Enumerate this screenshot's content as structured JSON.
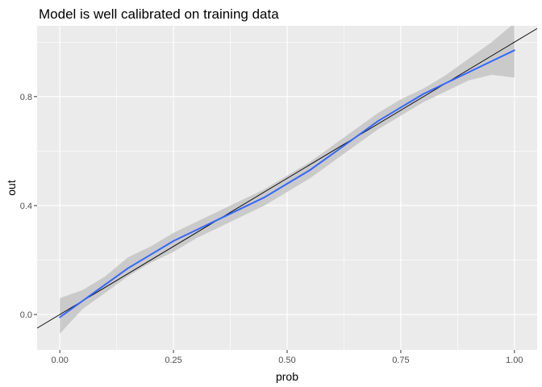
{
  "chart_data": {
    "type": "line",
    "title": "Model is well calibrated on training data",
    "xlabel": "prob",
    "ylabel": "out",
    "xlim": [
      -0.05,
      1.05
    ],
    "ylim": [
      -0.13,
      1.06
    ],
    "x_ticks": [
      0.0,
      0.25,
      0.5,
      0.75,
      1.0
    ],
    "x_tick_labels": [
      "0.00",
      "0.25",
      "0.50",
      "0.75",
      "1.00"
    ],
    "y_ticks": [
      0.0,
      0.4,
      0.8
    ],
    "y_tick_labels": [
      "0.0",
      "0.4",
      "0.8"
    ],
    "grid": true,
    "background": "#ebebeb",
    "series": [
      {
        "kind": "smooth",
        "color": "#3366ff",
        "band_color": "#c6c6c6",
        "x": [
          0.0,
          0.05,
          0.1,
          0.15,
          0.2,
          0.25,
          0.3,
          0.35,
          0.4,
          0.45,
          0.5,
          0.55,
          0.6,
          0.65,
          0.7,
          0.75,
          0.8,
          0.85,
          0.9,
          0.95,
          1.0
        ],
        "y": [
          -0.01,
          0.05,
          0.11,
          0.17,
          0.22,
          0.27,
          0.31,
          0.35,
          0.39,
          0.43,
          0.48,
          0.53,
          0.59,
          0.65,
          0.71,
          0.76,
          0.81,
          0.85,
          0.89,
          0.93,
          0.97
        ],
        "lower": [
          -0.07,
          0.02,
          0.08,
          0.14,
          0.19,
          0.23,
          0.28,
          0.32,
          0.36,
          0.4,
          0.45,
          0.5,
          0.56,
          0.62,
          0.68,
          0.73,
          0.78,
          0.82,
          0.86,
          0.88,
          0.87
        ],
        "upper": [
          0.06,
          0.09,
          0.14,
          0.21,
          0.25,
          0.3,
          0.34,
          0.38,
          0.42,
          0.46,
          0.51,
          0.56,
          0.62,
          0.68,
          0.74,
          0.79,
          0.83,
          0.88,
          0.94,
          1.0,
          1.07
        ]
      },
      {
        "kind": "reference-line",
        "color": "#000000",
        "intercept": 0,
        "slope": 1
      }
    ]
  }
}
